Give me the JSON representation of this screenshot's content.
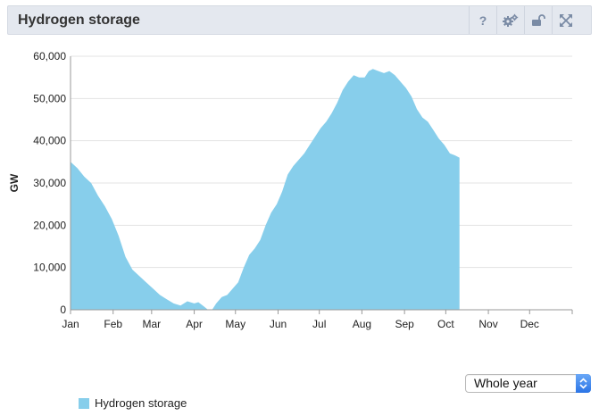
{
  "header": {
    "title": "Hydrogen storage",
    "help_glyph": "?",
    "icons": [
      "help-icon",
      "settings-icon",
      "unlock-icon",
      "fullscreen-icon"
    ]
  },
  "controls": {
    "period_value": "Whole year"
  },
  "legend": {
    "label": "Hydrogen storage",
    "color": "#87ceeb"
  },
  "chart_data": {
    "type": "area",
    "ylabel": "GW",
    "xlabel": "",
    "ylim": [
      0,
      60000
    ],
    "yticks": [
      0,
      10000,
      20000,
      30000,
      40000,
      50000,
      60000
    ],
    "ytick_labels": [
      "0",
      "10,000",
      "20,000",
      "30,000",
      "40,000",
      "50,000",
      "60,000"
    ],
    "xlim": [
      0,
      365
    ],
    "x_ticks": [
      {
        "label": "Jan",
        "day": 0
      },
      {
        "label": "Feb",
        "day": 31
      },
      {
        "label": "Mar",
        "day": 59
      },
      {
        "label": "Apr",
        "day": 90
      },
      {
        "label": "May",
        "day": 120
      },
      {
        "label": "Jun",
        "day": 151
      },
      {
        "label": "Jul",
        "day": 181
      },
      {
        "label": "Aug",
        "day": 212
      },
      {
        "label": "Sep",
        "day": 243
      },
      {
        "label": "Oct",
        "day": 273
      },
      {
        "label": "Nov",
        "day": 304
      },
      {
        "label": "Dec",
        "day": 334
      }
    ],
    "grid": true,
    "legend_position": "bottom-left",
    "series": [
      {
        "name": "Hydrogen storage",
        "color": "#87ceeb",
        "points": [
          [
            0,
            35000
          ],
          [
            5,
            33500
          ],
          [
            10,
            31500
          ],
          [
            15,
            30000
          ],
          [
            20,
            27000
          ],
          [
            25,
            24500
          ],
          [
            30,
            21500
          ],
          [
            35,
            17500
          ],
          [
            40,
            12500
          ],
          [
            45,
            9500
          ],
          [
            50,
            8000
          ],
          [
            55,
            6500
          ],
          [
            60,
            5000
          ],
          [
            65,
            3500
          ],
          [
            70,
            2500
          ],
          [
            75,
            1500
          ],
          [
            80,
            1000
          ],
          [
            85,
            2000
          ],
          [
            90,
            1500
          ],
          [
            93,
            1800
          ],
          [
            97,
            800
          ],
          [
            100,
            0
          ],
          [
            103,
            0
          ],
          [
            106,
            1500
          ],
          [
            110,
            3000
          ],
          [
            114,
            3500
          ],
          [
            118,
            5000
          ],
          [
            122,
            6500
          ],
          [
            126,
            10000
          ],
          [
            130,
            13000
          ],
          [
            134,
            14500
          ],
          [
            138,
            16500
          ],
          [
            142,
            20000
          ],
          [
            146,
            23000
          ],
          [
            150,
            25000
          ],
          [
            154,
            28000
          ],
          [
            158,
            32000
          ],
          [
            162,
            34000
          ],
          [
            166,
            35500
          ],
          [
            170,
            37000
          ],
          [
            174,
            39000
          ],
          [
            178,
            41000
          ],
          [
            182,
            43000
          ],
          [
            186,
            44500
          ],
          [
            190,
            46500
          ],
          [
            194,
            49000
          ],
          [
            198,
            52000
          ],
          [
            202,
            54000
          ],
          [
            206,
            55500
          ],
          [
            210,
            55000
          ],
          [
            214,
            55000
          ],
          [
            217,
            56500
          ],
          [
            220,
            57000
          ],
          [
            224,
            56500
          ],
          [
            228,
            56000
          ],
          [
            232,
            56500
          ],
          [
            236,
            55500
          ],
          [
            240,
            54000
          ],
          [
            244,
            52500
          ],
          [
            248,
            50500
          ],
          [
            252,
            47500
          ],
          [
            256,
            45500
          ],
          [
            260,
            44500
          ],
          [
            264,
            42500
          ],
          [
            268,
            40500
          ],
          [
            272,
            39000
          ],
          [
            276,
            37000
          ],
          [
            280,
            36500
          ],
          [
            283,
            36000
          ]
        ]
      }
    ]
  }
}
